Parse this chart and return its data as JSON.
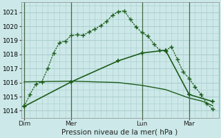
{
  "bg_color": "#cce8e8",
  "grid_color": "#aacccc",
  "line_color": "#1a5c1a",
  "title": "Pression niveau de la mer( hPa )",
  "ylim": [
    1013.5,
    1021.7
  ],
  "yticks": [
    1014,
    1015,
    1016,
    1017,
    1018,
    1019,
    1020,
    1021
  ],
  "day_labels": [
    "Dim",
    "Mer",
    "Lun",
    "Mar"
  ],
  "day_positions": [
    0,
    8,
    20,
    28
  ],
  "xlim": [
    -0.5,
    33
  ],
  "series1_x": [
    0,
    1,
    2,
    3,
    4,
    5,
    6,
    7,
    8,
    9,
    10,
    11,
    12,
    13,
    14,
    15,
    16,
    17,
    18,
    19,
    20,
    21,
    22,
    23,
    24,
    25,
    26,
    27,
    28,
    29,
    30,
    31,
    32
  ],
  "series1_y": [
    1014.3,
    1015.15,
    1015.9,
    1016.05,
    1017.0,
    1018.1,
    1018.85,
    1018.95,
    1019.35,
    1019.4,
    1019.35,
    1019.6,
    1019.8,
    1020.05,
    1020.35,
    1020.8,
    1021.05,
    1021.1,
    1020.5,
    1019.95,
    1019.55,
    1019.3,
    1018.75,
    1018.3,
    1018.25,
    1018.55,
    1017.65,
    1016.75,
    1016.3,
    1015.7,
    1015.15,
    1014.5,
    1014.1
  ],
  "series2_x": [
    0,
    8,
    16,
    20,
    24,
    28,
    32
  ],
  "series2_y": [
    1014.3,
    1016.05,
    1017.55,
    1018.1,
    1018.3,
    1015.15,
    1014.65
  ],
  "series3_x": [
    0,
    8,
    16,
    20,
    24,
    28,
    30,
    31,
    32
  ],
  "series3_y": [
    1016.05,
    1016.1,
    1016.0,
    1015.8,
    1015.5,
    1014.9,
    1014.7,
    1014.55,
    1014.35
  ]
}
